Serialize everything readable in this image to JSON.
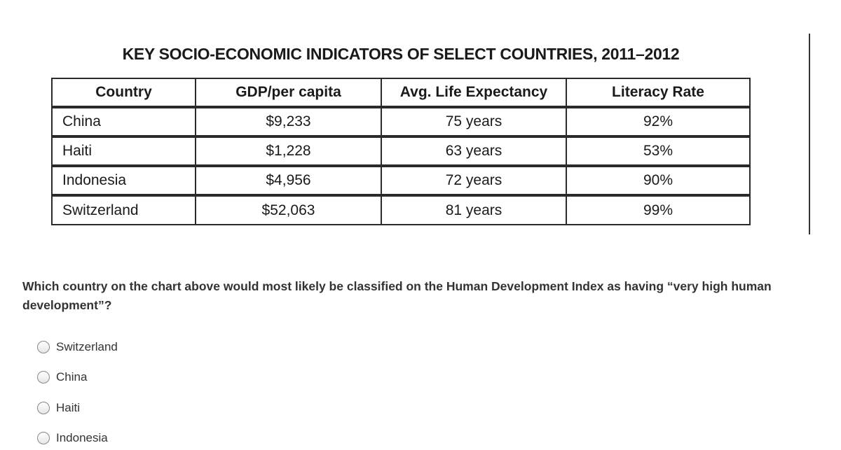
{
  "table": {
    "title": "KEY SOCIO-ECONOMIC INDICATORS OF SELECT COUNTRIES, 2011–2012",
    "header": [
      "Country",
      "GDP/per capita",
      "Avg. Life Expectancy",
      "Literacy Rate"
    ],
    "rows": [
      [
        "China",
        "$9,233",
        "75 years",
        "92%"
      ],
      [
        "Haiti",
        "$1,228",
        "63 years",
        "53%"
      ],
      [
        "Indonesia",
        "$4,956",
        "72 years",
        "90%"
      ],
      [
        "Switzerland",
        "$52,063",
        "81 years",
        "99%"
      ]
    ]
  },
  "question": {
    "text": "Which country on the chart above would most likely be classified on the Human Development Index as having “very high human development”?",
    "options": [
      "Switzerland",
      "China",
      "Haiti",
      "Indonesia"
    ]
  }
}
